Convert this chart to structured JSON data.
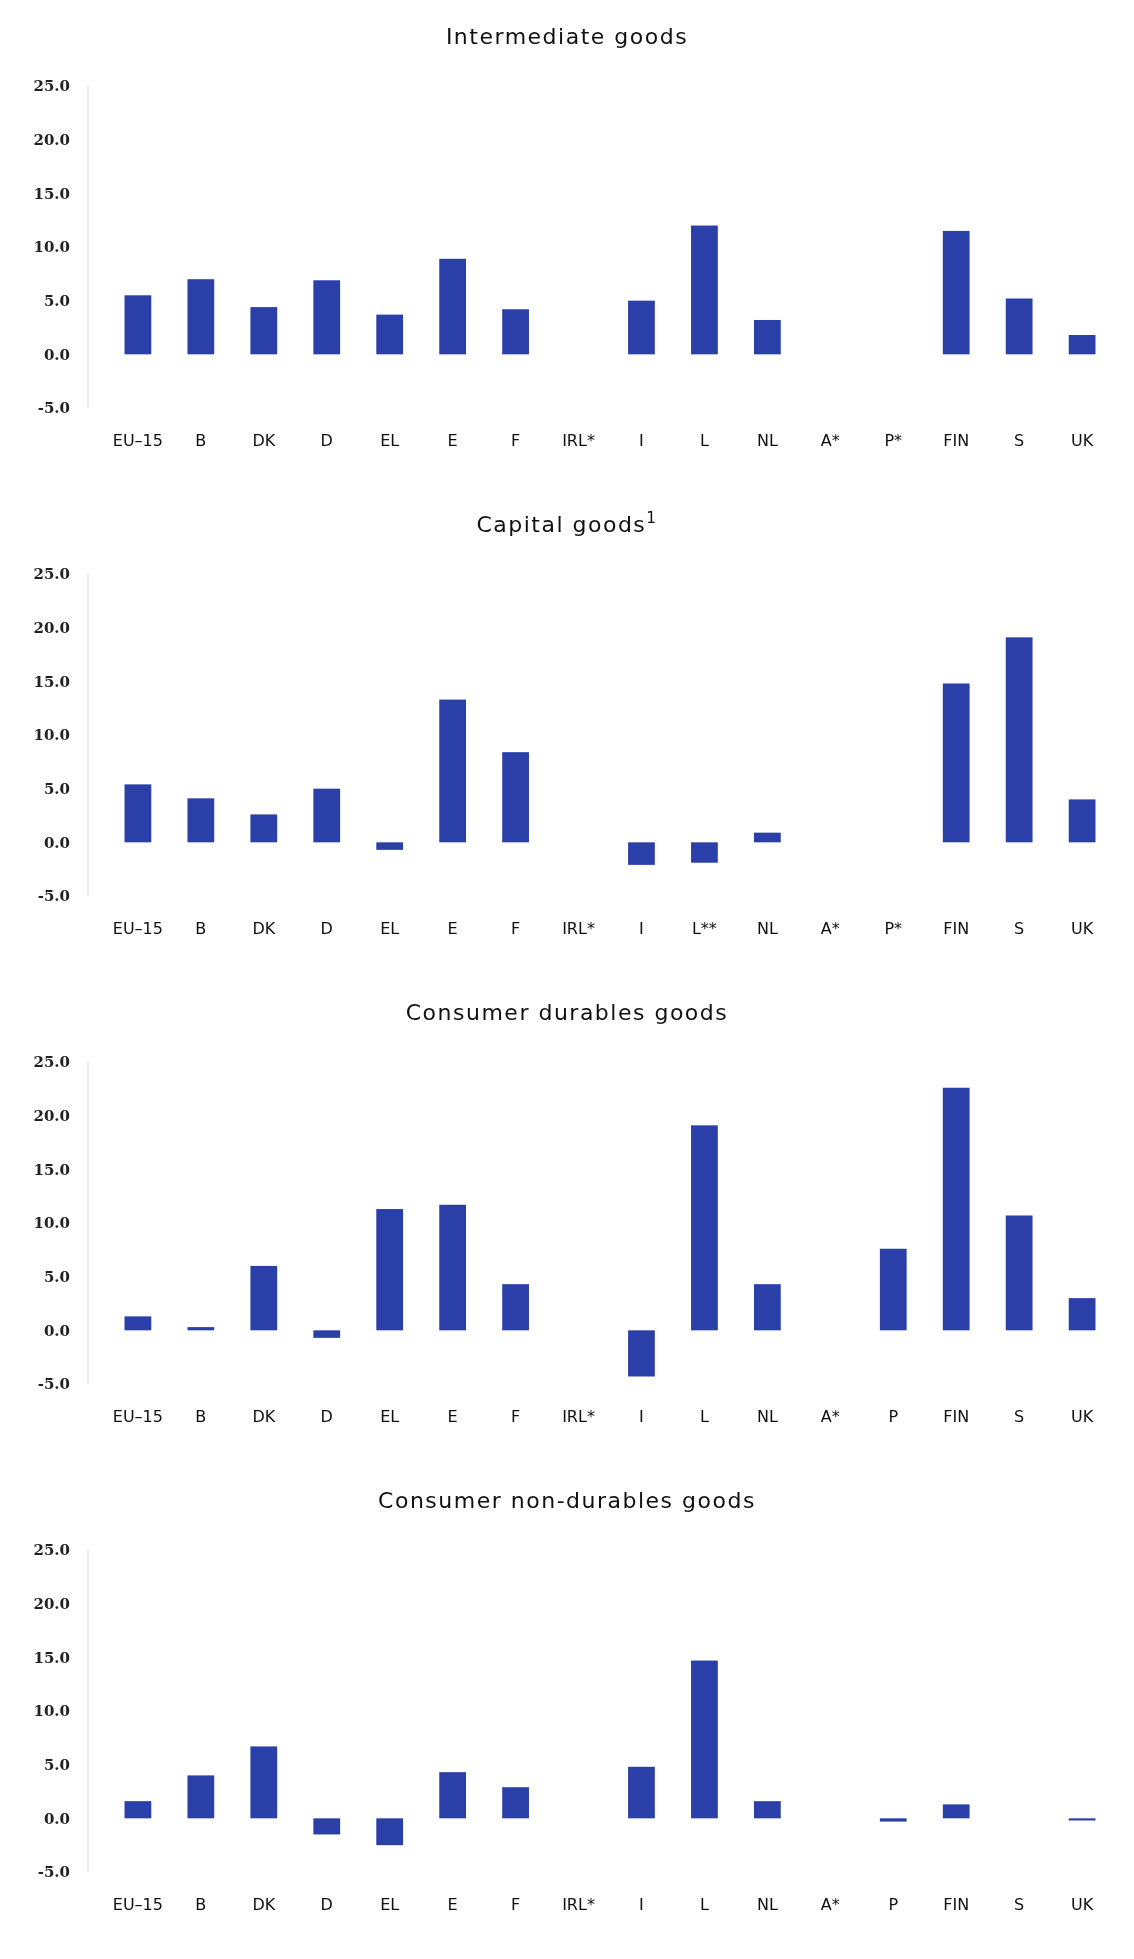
{
  "chart_data": [
    {
      "type": "bar",
      "title": "Intermediate goods",
      "categories": [
        "EU–15",
        "B",
        "DK",
        "D",
        "EL",
        "E",
        "F",
        "IRL*",
        "I",
        "L",
        "NL",
        "A*",
        "P*",
        "FIN",
        "S",
        "UK"
      ],
      "values": [
        5.5,
        7.0,
        4.4,
        6.9,
        3.7,
        8.9,
        4.2,
        null,
        5.0,
        12.0,
        3.2,
        null,
        null,
        11.5,
        5.2,
        1.8
      ],
      "color": "#2b3fa8",
      "ylim": [
        -5,
        25
      ],
      "yticks": [
        {
          "value": -5,
          "label": "-5.0"
        },
        {
          "value": 0,
          "label": "0.0"
        },
        {
          "value": 5,
          "label": "5.0"
        },
        {
          "value": 10,
          "label": "10.0"
        },
        {
          "value": 15,
          "label": "15.0"
        },
        {
          "value": 20,
          "label": "20.0"
        },
        {
          "value": 25,
          "label": "25.0"
        }
      ]
    },
    {
      "type": "bar",
      "title": "Capital goods$^{1}$",
      "categories": [
        "EU–15",
        "B",
        "DK",
        "D",
        "EL",
        "E",
        "F",
        "IRL*",
        "I",
        "L**",
        "NL",
        "A*",
        "P*",
        "FIN",
        "S",
        "UK"
      ],
      "values": [
        5.4,
        4.1,
        2.6,
        5.0,
        -0.7,
        13.3,
        8.4,
        null,
        -2.1,
        -1.9,
        0.9,
        null,
        null,
        14.8,
        19.1,
        4.0
      ],
      "color": "#2b3fa8",
      "ylim": [
        -5,
        25
      ],
      "yticks": [
        {
          "value": -5,
          "label": "-5.0"
        },
        {
          "value": 0,
          "label": "0.0"
        },
        {
          "value": 5,
          "label": "5.0"
        },
        {
          "value": 10,
          "label": "10.0"
        },
        {
          "value": 15,
          "label": "15.0"
        },
        {
          "value": 20,
          "label": "20.0"
        },
        {
          "value": 25,
          "label": "25.0"
        }
      ]
    },
    {
      "type": "bar",
      "title": "Consumer durables goods",
      "categories": [
        "EU–15",
        "B",
        "DK",
        "D",
        "EL",
        "E",
        "F",
        "IRL*",
        "I",
        "L",
        "NL",
        "A*",
        "P",
        "FIN",
        "S",
        "UK"
      ],
      "values": [
        1.3,
        0.3,
        6.0,
        -0.7,
        11.3,
        11.7,
        4.3,
        null,
        -4.3,
        19.1,
        4.3,
        null,
        7.6,
        22.6,
        10.7,
        3.0
      ],
      "color": "#2b3fa8",
      "ylim": [
        -5,
        25
      ],
      "yticks": [
        {
          "value": -5,
          "label": "-5.0"
        },
        {
          "value": 0,
          "label": "0.0"
        },
        {
          "value": 5,
          "label": "5.0"
        },
        {
          "value": 10,
          "label": "10.0"
        },
        {
          "value": 15,
          "label": "15.0"
        },
        {
          "value": 20,
          "label": "20.0"
        },
        {
          "value": 25,
          "label": "25.0"
        }
      ]
    },
    {
      "type": "bar",
      "title": "Consumer non-durables goods",
      "categories": [
        "EU–15",
        "B",
        "DK",
        "D",
        "EL",
        "E",
        "F",
        "IRL*",
        "I",
        "L",
        "NL",
        "A*",
        "P",
        "FIN",
        "S",
        "UK"
      ],
      "values": [
        1.6,
        4.0,
        6.7,
        -1.5,
        -2.5,
        4.3,
        2.9,
        null,
        4.8,
        14.7,
        1.6,
        null,
        -0.3,
        1.3,
        null,
        -0.2
      ],
      "color": "#2b3fa8",
      "ylim": [
        -5,
        25
      ],
      "yticks": [
        {
          "value": -5,
          "label": "-5.0"
        },
        {
          "value": 0,
          "label": "0.0"
        },
        {
          "value": 5,
          "label": "5.0"
        },
        {
          "value": 10,
          "label": "10.0"
        },
        {
          "value": 15,
          "label": "15.0"
        },
        {
          "value": 20,
          "label": "20.0"
        },
        {
          "value": 25,
          "label": "25.0"
        }
      ]
    }
  ]
}
